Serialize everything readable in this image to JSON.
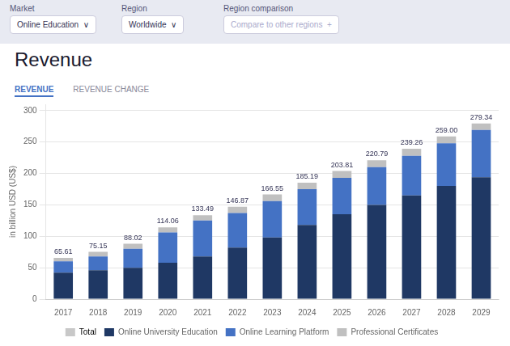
{
  "chart_data": {
    "type": "bar",
    "title": "Revenue",
    "annotations": [
      "Market",
      "Online Education  ∨",
      "Region",
      "Worldwide  ∨",
      "Region comparison",
      "Compare to other regions  +",
      "REVENUE",
      "REVENUE CHANGE"
    ],
    "categories": [
      "2017",
      "2018",
      "2019",
      "2020",
      "2021",
      "2022",
      "2023",
      "2024",
      "2025",
      "2026",
      "2027",
      "2028",
      "2029"
    ],
    "series": [
      {
        "name": "Online University Education",
        "color": "#1F3864",
        "values": [
          42.0,
          46.0,
          50.0,
          58.0,
          68.0,
          82.0,
          98.0,
          118.0,
          135.0,
          150.0,
          165.0,
          180.0,
          194.0
        ]
      },
      {
        "name": "Online Learning Platform",
        "color": "#4472C4",
        "values": [
          18.0,
          22.0,
          30.0,
          48.0,
          57.0,
          55.0,
          58.0,
          57.0,
          58.0,
          60.0,
          63.0,
          68.0,
          75.0
        ]
      },
      {
        "name": "Professional Certificates",
        "color": "#C0C0C0",
        "values": [
          5.61,
          7.15,
          8.02,
          8.06,
          8.49,
          9.87,
          10.55,
          10.19,
          10.81,
          10.79,
          11.26,
          11.0,
          10.34
        ]
      }
    ],
    "totals": {
      "name": "Total",
      "color": "#C8C8C8",
      "values": [
        65.61,
        75.15,
        88.02,
        114.06,
        133.49,
        146.87,
        166.55,
        185.19,
        203.81,
        220.79,
        239.26,
        259.0,
        279.34
      ],
      "value_labels": [
        "65.61",
        "75.15",
        "88.02",
        "114.06",
        "133.49",
        "146.87",
        "166.55",
        "185.19",
        "203.81",
        "220.79",
        "239.26",
        "259.00",
        "279.34"
      ]
    },
    "stacked": true,
    "ylabel": "in billion USD (US$)",
    "ylim": [
      0,
      310
    ],
    "yticks": [
      0,
      50,
      100,
      150,
      200,
      250,
      300
    ],
    "grid": true,
    "legend": "bottom"
  }
}
